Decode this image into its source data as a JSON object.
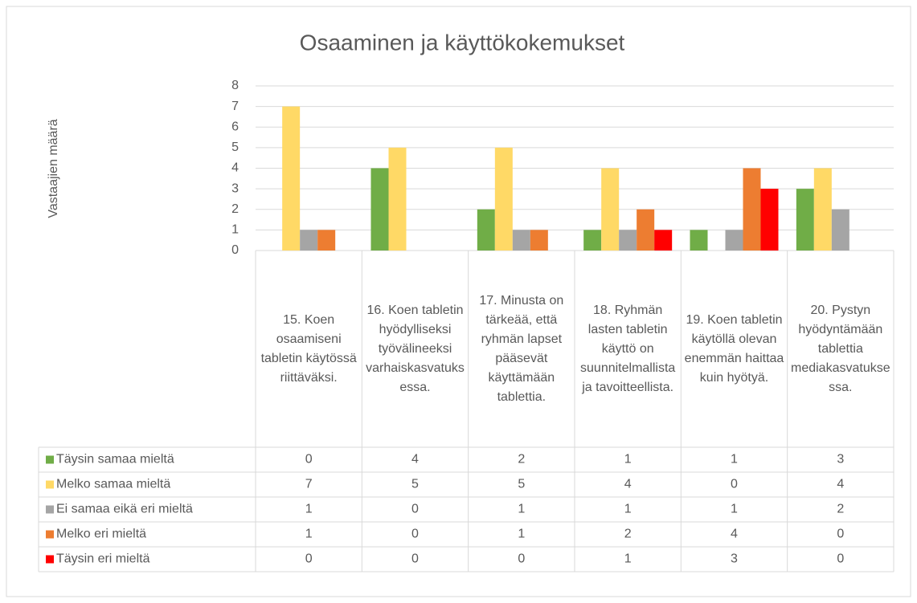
{
  "chart_data": {
    "type": "bar",
    "title": "Osaaminen ja käyttökokemukset",
    "y_axis_label": "Vastaajien määrä",
    "categories": [
      "15. Koen osaamiseni tabletin käytössä riittäväksi.",
      "16. Koen tabletin hyödylliseksi työvälineeksi varhaiskasvatuksessa.",
      "17. Minusta on tärkeää, että ryhmän lapset pääsevät käyttämään tablettia.",
      "18. Ryhmän lasten tabletin käyttö on suunnitelmallista ja tavoitteellista.",
      "19. Koen tabletin käytöllä olevan enemmän haittaa kuin hyötyä.",
      "20. Pystyn hyödyntämään tablettia mediakasvatuksessa."
    ],
    "series": [
      {
        "name": "Täysin samaa mieltä",
        "color": "#70ad47",
        "values": [
          0,
          4,
          2,
          1,
          1,
          3
        ]
      },
      {
        "name": "Melko samaa mieltä",
        "color": "#ffd966",
        "values": [
          7,
          5,
          5,
          4,
          0,
          4
        ]
      },
      {
        "name": "Ei samaa eikä eri mieltä",
        "color": "#a5a5a5",
        "values": [
          1,
          0,
          1,
          1,
          1,
          2
        ]
      },
      {
        "name": "Melko eri mieltä",
        "color": "#ed7d31",
        "values": [
          1,
          0,
          1,
          2,
          4,
          0
        ]
      },
      {
        "name": "Täysin eri mieltä",
        "color": "#ff0000",
        "values": [
          0,
          0,
          0,
          1,
          3,
          0
        ]
      }
    ],
    "ylim": [
      0,
      8
    ],
    "yticks": [
      0,
      1,
      2,
      3,
      4,
      5,
      6,
      7,
      8
    ],
    "grid": true,
    "data_table": true
  }
}
